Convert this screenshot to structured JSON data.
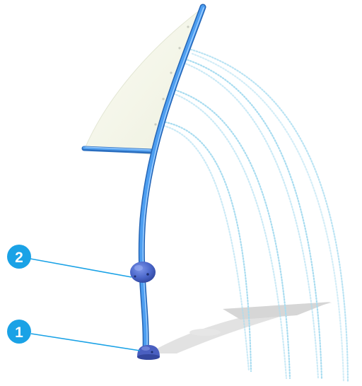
{
  "callouts": [
    {
      "number": "2",
      "target": "spray-nozzle"
    },
    {
      "number": "1",
      "target": "base-mount"
    }
  ],
  "colors": {
    "pole": "#3f8fe0",
    "pole_dark": "#2b6fc0",
    "pole_highlight": "#8cc4ff",
    "sail": "#f7f8ee",
    "sail_edge": "#e3e6d4",
    "nozzle": "#4a66c9",
    "base": "#4a5fc0",
    "callout": "#1aa2e6",
    "water": "#9fd6ee",
    "shadow": "#d9d9d9"
  },
  "icons": {
    "callout": "numbered-circle-badge",
    "fixture": "sail-shaped-water-spray-arch"
  }
}
